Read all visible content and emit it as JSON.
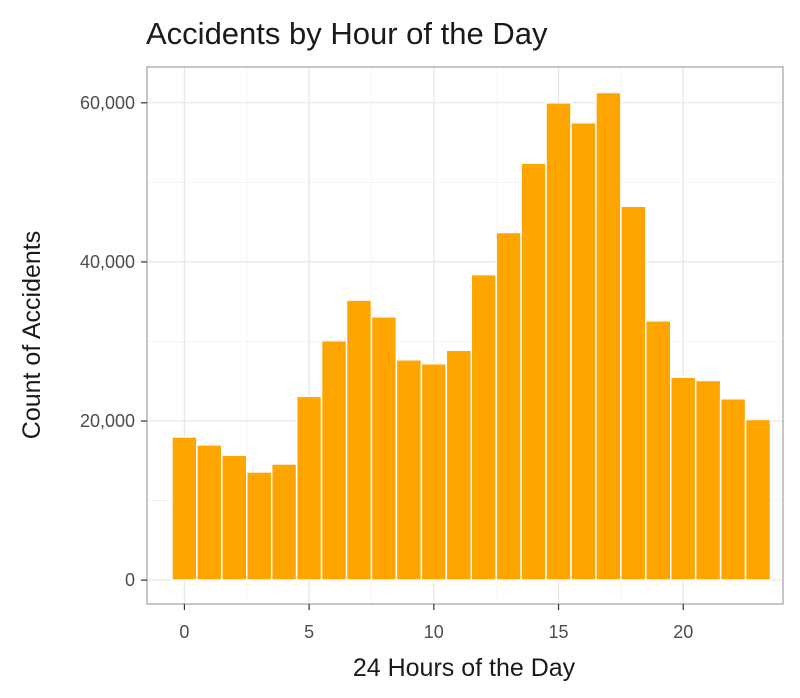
{
  "chart_data": {
    "type": "bar",
    "title": "Accidents by Hour of the Day",
    "xlabel": "24 Hours of the Day",
    "ylabel": "Count of Accidents",
    "x": [
      0,
      1,
      2,
      3,
      4,
      5,
      6,
      7,
      8,
      9,
      10,
      11,
      12,
      13,
      14,
      15,
      16,
      17,
      18,
      19,
      20,
      21,
      22,
      23
    ],
    "values": [
      18000,
      17000,
      15700,
      13600,
      14600,
      23100,
      30100,
      35200,
      33100,
      27700,
      27200,
      28900,
      38400,
      43700,
      52400,
      60000,
      57500,
      61300,
      47000,
      32600,
      25500,
      25100,
      22800,
      20200
    ],
    "xlim": [
      -1.5,
      24
    ],
    "ylim": [
      -3000,
      64500
    ],
    "x_ticks": [
      0,
      5,
      10,
      15,
      20
    ],
    "x_tick_labels": [
      "0",
      "5",
      "10",
      "15",
      "20"
    ],
    "y_ticks": [
      0,
      20000,
      40000,
      60000
    ],
    "y_tick_labels": [
      "0",
      "20,000",
      "40,000",
      "60,000"
    ],
    "bar_color": "#ffa500",
    "grid": true,
    "legend": "none"
  }
}
